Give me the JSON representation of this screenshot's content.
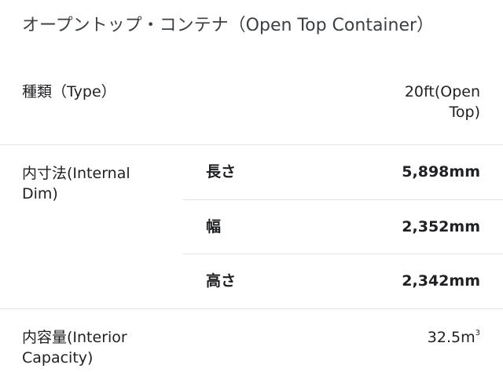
{
  "title": "オープントップ・コンテナ（Open Top Container）",
  "rows": {
    "type": {
      "label": "種類（Type）",
      "value_line1": "20ft(Open",
      "value_line2": "Top)"
    },
    "internal_dim": {
      "label_line1": "内寸法(Internal",
      "label_line2": "Dim)",
      "items": [
        {
          "name": "長さ",
          "value": "5,898mm"
        },
        {
          "name": "幅",
          "value": "2,352mm"
        },
        {
          "name": "高さ",
          "value": "2,342mm"
        }
      ]
    },
    "capacity": {
      "label_line1": "内容量(Interior",
      "label_line2": "Capacity)",
      "value": "32.5m",
      "value_sup": "3"
    }
  }
}
